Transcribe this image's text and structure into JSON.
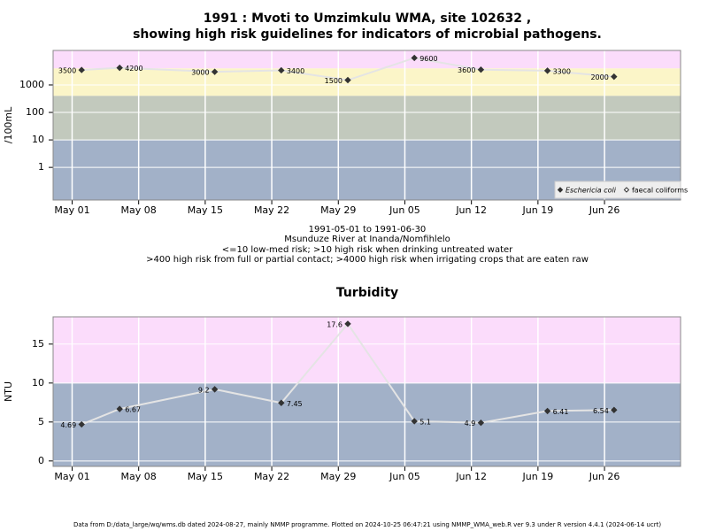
{
  "chart_data": [
    {
      "type": "line",
      "title": [
        "1991 : Mvoti to Umzimkulu WMA, site 102632 ,",
        "showing high risk guidelines for indicators of microbial pathogens."
      ],
      "notes": [
        "1991-05-01 to 1991-06-30",
        "Msunduze River at Inanda/Nomfihlelo",
        "<=10 low-med risk; >10 high risk when drinking untreated water",
        ">400 high risk from full or partial contact; >4000 high risk when irrigating crops that are eaten raw"
      ],
      "y_label": "/100mL",
      "log_scale": true,
      "grid": true,
      "legend": "bottom right",
      "x": [
        "1991-05-02",
        "1991-05-06",
        "1991-05-16",
        "1991-05-23",
        "1991-05-30",
        "1991-06-06",
        "1991-06-13",
        "1991-06-20",
        "1991-06-27"
      ],
      "series": [
        {
          "name": "Eschericia coli",
          "color": "#333333",
          "values": [
            3500,
            4200,
            3000,
            3400,
            1500,
            9600,
            3600,
            3300,
            2000
          ]
        },
        {
          "name": "faecal coliforms",
          "color": "#ffffff",
          "values": [
            null,
            null,
            null,
            null,
            null,
            null,
            null,
            null,
            null
          ]
        }
      ],
      "bands": [
        {
          "from": 4000,
          "to": 18000,
          "color": "#fbdcfb"
        },
        {
          "from": 400,
          "to": 4000,
          "color": "#fbf5c8"
        },
        {
          "from": 10,
          "to": 400,
          "color": "#c2c9bd"
        },
        {
          "from": 0.065,
          "to": 10,
          "color": "#a2b1c8"
        }
      ],
      "xlim": [
        "1991-04-29",
        "1991-07-04"
      ],
      "xticks": [
        {
          "value": "1991-05-01",
          "label": "May 01"
        },
        {
          "value": "1991-05-08",
          "label": "May 08"
        },
        {
          "value": "1991-05-15",
          "label": "May 15"
        },
        {
          "value": "1991-05-22",
          "label": "May 22"
        },
        {
          "value": "1991-05-29",
          "label": "May 29"
        },
        {
          "value": "1991-06-05",
          "label": "Jun 05"
        },
        {
          "value": "1991-06-12",
          "label": "Jun 12"
        },
        {
          "value": "1991-06-19",
          "label": "Jun 19"
        },
        {
          "value": "1991-06-26",
          "label": "Jun 26"
        }
      ],
      "ylim": [
        0.065,
        18000
      ],
      "yticks": [
        1,
        10,
        100,
        1000
      ]
    },
    {
      "type": "line",
      "title": "Turbidity",
      "y_label": "NTU",
      "log_scale": false,
      "grid": true,
      "x": [
        "1991-05-02",
        "1991-05-06",
        "1991-05-16",
        "1991-05-23",
        "1991-05-30",
        "1991-06-06",
        "1991-06-13",
        "1991-06-20",
        "1991-06-27"
      ],
      "series": [
        {
          "color": "#333333",
          "values": [
            4.69,
            6.67,
            9.2,
            7.45,
            17.6,
            5.1,
            4.9,
            6.41,
            6.54
          ]
        }
      ],
      "bands": [
        {
          "from": 10,
          "to": 18.5,
          "color": "#fbdcfb"
        },
        {
          "from": -0.7,
          "to": 10,
          "color": "#a2b1c8"
        }
      ],
      "xlim": [
        "1991-04-29",
        "1991-07-04"
      ],
      "xticks": [
        {
          "value": "1991-05-01",
          "label": "May 01"
        },
        {
          "value": "1991-05-08",
          "label": "May 08"
        },
        {
          "value": "1991-05-15",
          "label": "May 15"
        },
        {
          "value": "1991-05-22",
          "label": "May 22"
        },
        {
          "value": "1991-05-29",
          "label": "May 29"
        },
        {
          "value": "1991-06-05",
          "label": "Jun 05"
        },
        {
          "value": "1991-06-12",
          "label": "Jun 12"
        },
        {
          "value": "1991-06-19",
          "label": "Jun 19"
        },
        {
          "value": "1991-06-26",
          "label": "Jun 26"
        }
      ],
      "ylim": [
        -0.7,
        18.5
      ],
      "yticks": [
        0,
        5,
        10,
        15
      ]
    }
  ],
  "footer": "Data from D:/data_large/wq/wms.db dated 2024-08-27, mainly NMMP programme. Plotted on 2024-10-25 06:47:21 using NMMP_WMA_web.R ver 9.3 under R version 4.4.1 (2024-06-14 ucrt)"
}
